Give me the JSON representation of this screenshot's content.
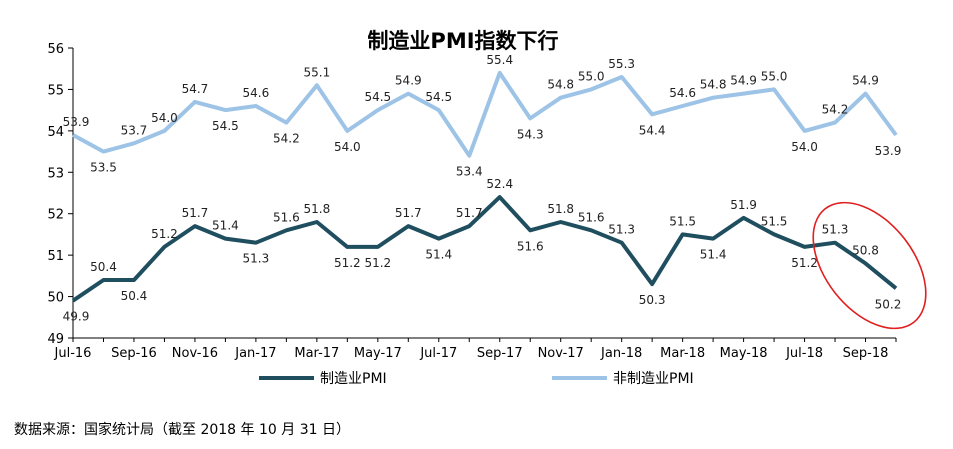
{
  "chart_data": {
    "type": "line",
    "title": "制造业PMI指数下行",
    "x": [
      "Jul-16",
      "Aug-16",
      "Sep-16",
      "Oct-16",
      "Nov-16",
      "Dec-16",
      "Jan-17",
      "Feb-17",
      "Mar-17",
      "Apr-17",
      "May-17",
      "Jun-17",
      "Jul-17",
      "Aug-17",
      "Sep-17",
      "Oct-17",
      "Nov-17",
      "Dec-17",
      "Jan-18",
      "Feb-18",
      "Mar-18",
      "Apr-18",
      "May-18",
      "Jun-18",
      "Jul-18",
      "Aug-18",
      "Sep-18",
      "Oct-18"
    ],
    "x_tick_labels": [
      "Jul-16",
      "Sep-16",
      "Nov-16",
      "Jan-17",
      "Mar-17",
      "May-17",
      "Jul-17",
      "Sep-17",
      "Nov-17",
      "Jan-18",
      "Mar-18",
      "May-18",
      "Jul-18",
      "Sep-18"
    ],
    "y_ticks": [
      "49",
      "50",
      "51",
      "52",
      "53",
      "54",
      "55",
      "56"
    ],
    "ylim": [
      49,
      56
    ],
    "series": [
      {
        "name": "制造业PMI",
        "color": "#1f4e5f",
        "values": [
          49.9,
          50.4,
          50.4,
          51.2,
          51.7,
          51.4,
          51.3,
          51.6,
          51.8,
          51.2,
          51.2,
          51.7,
          51.4,
          51.7,
          52.4,
          51.6,
          51.8,
          51.6,
          51.3,
          50.3,
          51.5,
          51.4,
          51.9,
          51.5,
          51.2,
          51.3,
          50.8,
          50.2
        ],
        "data_labels": [
          "49.9",
          "50.4",
          "50.4",
          "51.2",
          "51.7",
          "51.4",
          "51.3",
          "51.6",
          "51.8",
          "51.2",
          "51.2",
          "51.7",
          "51.4",
          "51.7",
          "52.4",
          "51.6",
          "51.8",
          "51.6",
          "51.3",
          "50.3",
          "51.5",
          "51.4",
          "51.9",
          "51.5",
          "51.2",
          "51.3",
          "50.8",
          "50.2"
        ]
      },
      {
        "name": "非制造业PMI",
        "color": "#9dc3e6",
        "values": [
          53.9,
          53.5,
          53.7,
          54.0,
          54.7,
          54.5,
          54.6,
          54.2,
          55.1,
          54.0,
          54.5,
          54.9,
          54.5,
          53.4,
          55.4,
          54.3,
          54.8,
          55.0,
          55.3,
          54.4,
          54.6,
          54.8,
          54.9,
          55.0,
          54.0,
          54.2,
          54.9,
          53.9
        ],
        "data_labels": [
          "53.9",
          "53.5",
          "53.7",
          "54.0",
          "54.7",
          "54.5",
          "54.6",
          "54.2",
          "55.1",
          "54.0",
          "54.5",
          "54.9",
          "54.5",
          "53.4",
          "55.4",
          "54.3",
          "54.8",
          "55.0",
          "55.3",
          "54.4",
          "54.6",
          "54.8",
          "54.9",
          "55.0",
          "54.0",
          "54.2",
          "54.9",
          "53.9"
        ]
      }
    ],
    "legend_position": "bottom-center",
    "annotation": {
      "shape": "ellipse",
      "color": "#e02020",
      "highlights": "Aug-18 to Oct-18 decline"
    },
    "grid": false
  },
  "source_note": "数据来源：国家统计局（截至 2018 年 10 月 31 日）"
}
